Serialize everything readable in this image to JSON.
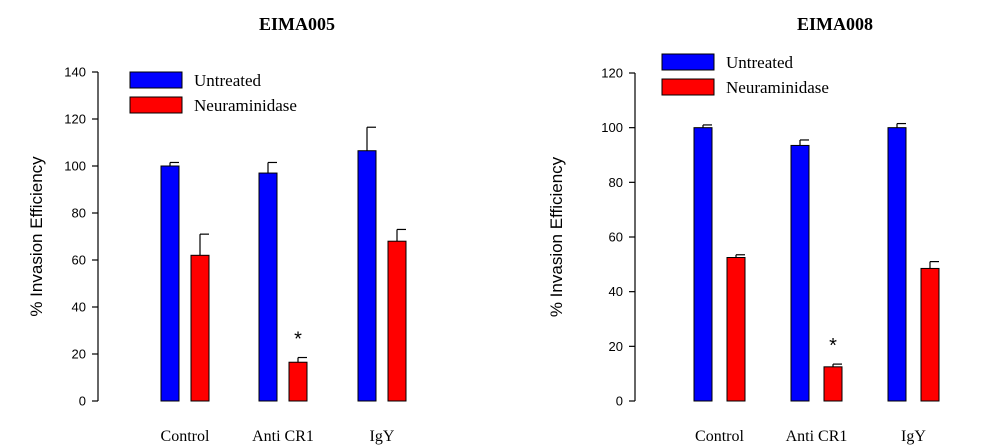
{
  "colors": {
    "untreated": "#0000ff",
    "neuraminidase": "#ff0000",
    "ink": "#000000"
  },
  "chart_data": [
    {
      "type": "bar",
      "title": "EIMA005",
      "ylabel": "% Invasion Efficiency",
      "xlabel": "",
      "ylim": [
        0,
        140
      ],
      "yticks": [
        0,
        20,
        40,
        60,
        80,
        100,
        120,
        140
      ],
      "ytick_labels": [
        "0",
        "20",
        "40",
        "60",
        "80",
        "100",
        "120",
        "140"
      ],
      "categories": [
        "Control",
        "Anti CR1",
        "IgY"
      ],
      "legend_position": "top-left",
      "grid": false,
      "series": [
        {
          "name": "Untreated",
          "values": [
            100,
            97,
            106.5
          ],
          "errors": [
            1.5,
            4.5,
            10
          ]
        },
        {
          "name": "Neuraminidase",
          "values": [
            62,
            16.5,
            68
          ],
          "errors": [
            9,
            2,
            5
          ]
        }
      ],
      "annotations": [
        {
          "category": "Anti CR1",
          "series": "Neuraminidase",
          "text": "*"
        }
      ]
    },
    {
      "type": "bar",
      "title": "EIMA008",
      "ylabel": "% Invasion Efficiency",
      "xlabel": "",
      "ylim": [
        0,
        120
      ],
      "yticks": [
        0,
        20,
        40,
        60,
        80,
        100,
        120
      ],
      "ytick_labels": [
        "0",
        "20",
        "40",
        "60",
        "80",
        "100",
        "120"
      ],
      "categories": [
        "Control",
        "Anti CR1",
        "IgY"
      ],
      "legend_position": "top-left",
      "grid": false,
      "series": [
        {
          "name": "Untreated",
          "values": [
            100,
            93.5,
            100
          ],
          "errors": [
            1,
            2,
            1.5
          ]
        },
        {
          "name": "Neuraminidase",
          "values": [
            52.5,
            12.5,
            48.5
          ],
          "errors": [
            1,
            1,
            2.5
          ]
        }
      ],
      "annotations": [
        {
          "category": "Anti CR1",
          "series": "Neuraminidase",
          "text": "*"
        }
      ]
    }
  ]
}
